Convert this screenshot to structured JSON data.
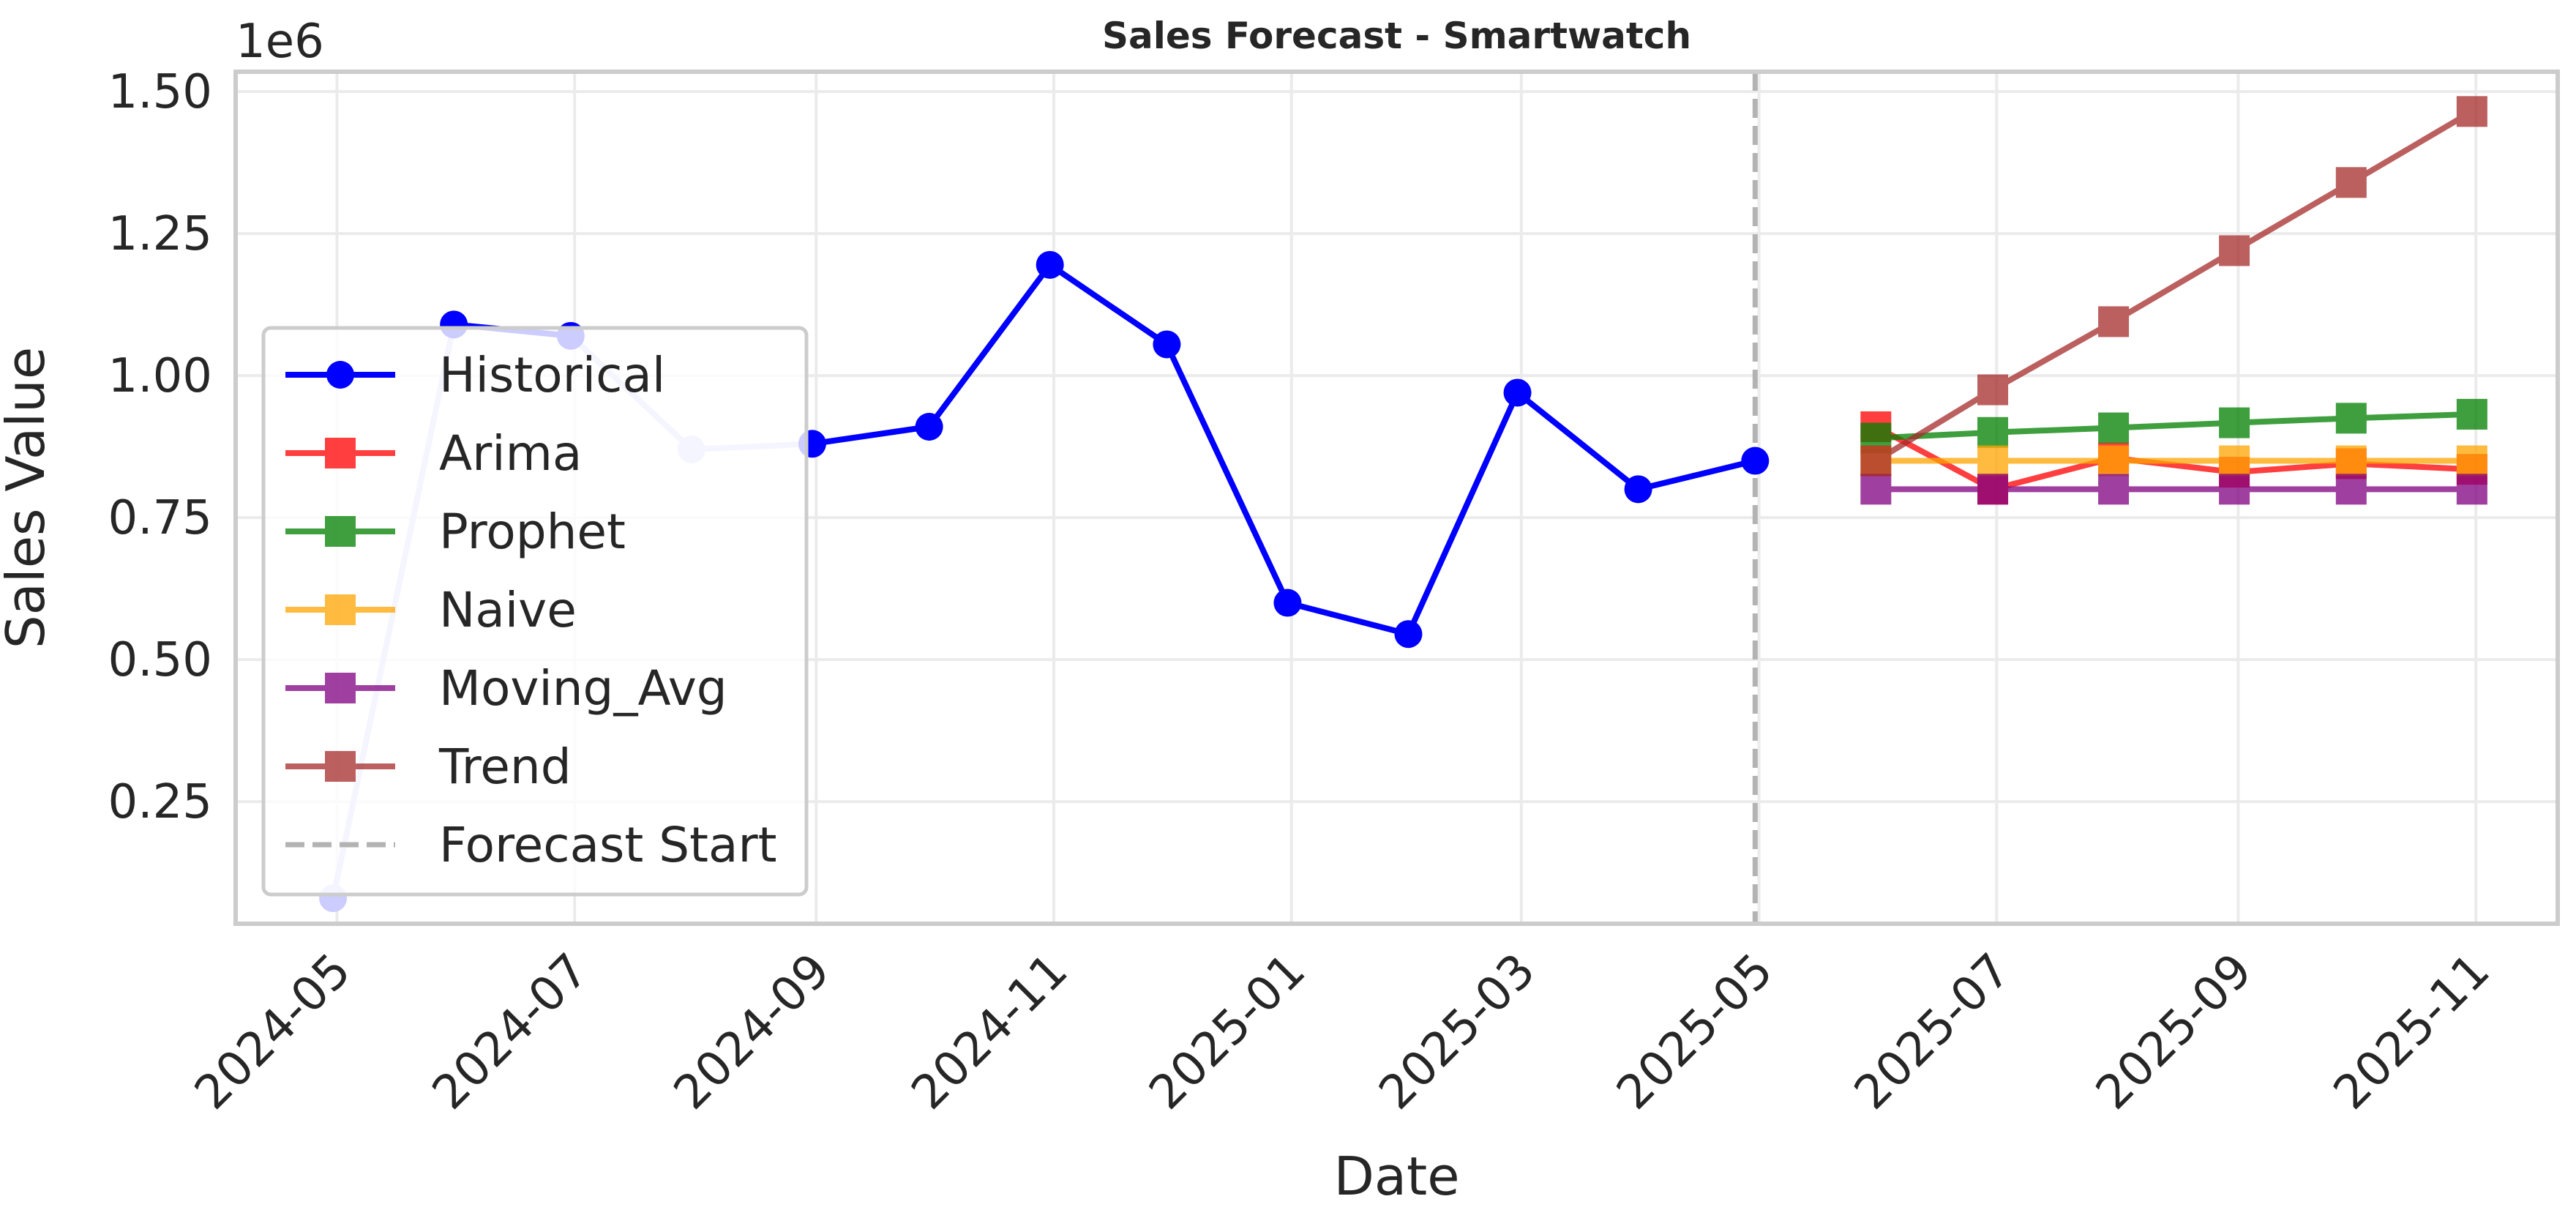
{
  "chart_data": {
    "type": "line",
    "title": "Sales Forecast - Smartwatch",
    "xlabel": "Date",
    "ylabel": "Sales Value",
    "y_offset_text": "1e6",
    "ylim": [
      0.035,
      1.535
    ],
    "y_multiplier": 1000000,
    "xlim": [
      "2024-04-05",
      "2025-11-22"
    ],
    "grid": true,
    "legend_position": "center-left",
    "y_ticks": [
      {
        "value": 0.25,
        "label": "0.25"
      },
      {
        "value": 0.5,
        "label": "0.50"
      },
      {
        "value": 0.75,
        "label": "0.75"
      },
      {
        "value": 1.0,
        "label": "1.00"
      },
      {
        "value": 1.25,
        "label": "1.25"
      },
      {
        "value": 1.5,
        "label": "1.50"
      }
    ],
    "x_ticks": [
      {
        "value": "2024-05-01",
        "label": "2024-05"
      },
      {
        "value": "2024-07-01",
        "label": "2024-07"
      },
      {
        "value": "2024-09-01",
        "label": "2024-09"
      },
      {
        "value": "2024-11-01",
        "label": "2024-11"
      },
      {
        "value": "2025-01-01",
        "label": "2025-01"
      },
      {
        "value": "2025-03-01",
        "label": "2025-03"
      },
      {
        "value": "2025-05-01",
        "label": "2025-05"
      },
      {
        "value": "2025-07-01",
        "label": "2025-07"
      },
      {
        "value": "2025-09-01",
        "label": "2025-09"
      },
      {
        "value": "2025-11-01",
        "label": "2025-11"
      }
    ],
    "forecast_start": {
      "name": "Forecast Start",
      "x": "2025-04-30",
      "color": "#b3b3b3"
    },
    "historical": {
      "name": "Historical",
      "color": "#0000ff",
      "faded_color": "#ccccff",
      "marker": "circle",
      "points": [
        {
          "x": "2024-04-30",
          "y": 0.08,
          "faded": true
        },
        {
          "x": "2024-05-31",
          "y": 1.09,
          "faded": false
        },
        {
          "x": "2024-06-30",
          "y": 1.07,
          "faded": false
        },
        {
          "x": "2024-07-31",
          "y": 0.87,
          "faded": true
        },
        {
          "x": "2024-08-31",
          "y": 0.88,
          "faded": false
        },
        {
          "x": "2024-09-30",
          "y": 0.91,
          "faded": false
        },
        {
          "x": "2024-10-31",
          "y": 1.195,
          "faded": false
        },
        {
          "x": "2024-11-30",
          "y": 1.055,
          "faded": false
        },
        {
          "x": "2024-12-31",
          "y": 0.6,
          "faded": false
        },
        {
          "x": "2025-01-31",
          "y": 0.545,
          "faded": false
        },
        {
          "x": "2025-02-28",
          "y": 0.97,
          "faded": false
        },
        {
          "x": "2025-03-31",
          "y": 0.8,
          "faded": false
        },
        {
          "x": "2025-04-30",
          "y": 0.85,
          "faded": false
        }
      ]
    },
    "forecast_x": [
      "2025-05-31",
      "2025-06-30",
      "2025-07-31",
      "2025-08-31",
      "2025-09-30",
      "2025-10-31"
    ],
    "series": [
      {
        "name": "Arima",
        "color": "#ff0000",
        "values": [
          0.91,
          0.8,
          0.855,
          0.83,
          0.845,
          0.835
        ]
      },
      {
        "name": "Prophet",
        "color": "#008000",
        "values": [
          0.89,
          0.9,
          0.908,
          0.917,
          0.925,
          0.932
        ]
      },
      {
        "name": "Naive",
        "color": "#ffa500",
        "values": [
          0.85,
          0.85,
          0.85,
          0.85,
          0.85,
          0.85
        ]
      },
      {
        "name": "Moving_Avg",
        "color": "#800080",
        "values": [
          0.8,
          0.8,
          0.8,
          0.8,
          0.8,
          0.8
        ]
      },
      {
        "name": "Trend",
        "color": "#a52a2a",
        "values": [
          0.85,
          0.975,
          1.095,
          1.22,
          1.34,
          1.465
        ]
      }
    ],
    "legend": [
      "Historical",
      "Arima",
      "Prophet",
      "Naive",
      "Moving_Avg",
      "Trend",
      "Forecast Start"
    ]
  }
}
